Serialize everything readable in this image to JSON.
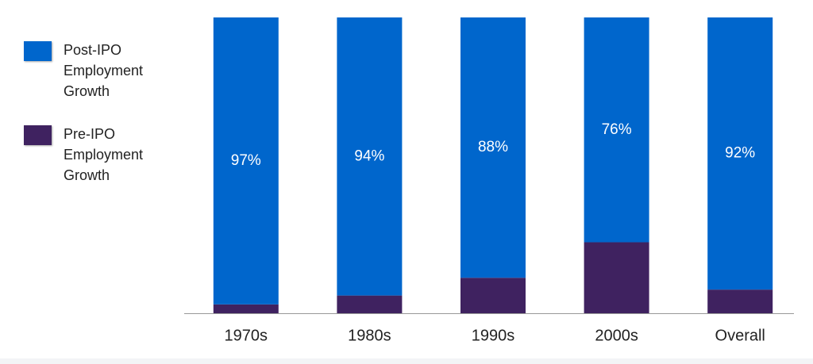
{
  "chart_data": {
    "type": "stacked-bar",
    "categories": [
      "1970s",
      "1980s",
      "1990s",
      "2000s",
      "Overall"
    ],
    "series": [
      {
        "name": "Post-IPO Employment Growth",
        "color": "#0066cc",
        "values": [
          97,
          94,
          88,
          76,
          92
        ],
        "value_labels": [
          "97%",
          "94%",
          "88%",
          "76%",
          "92%"
        ]
      },
      {
        "name": "Pre-IPO Employment Growth",
        "color": "#3f2260",
        "values": [
          3,
          6,
          12,
          24,
          8
        ]
      }
    ],
    "ylim": [
      0,
      100
    ]
  }
}
